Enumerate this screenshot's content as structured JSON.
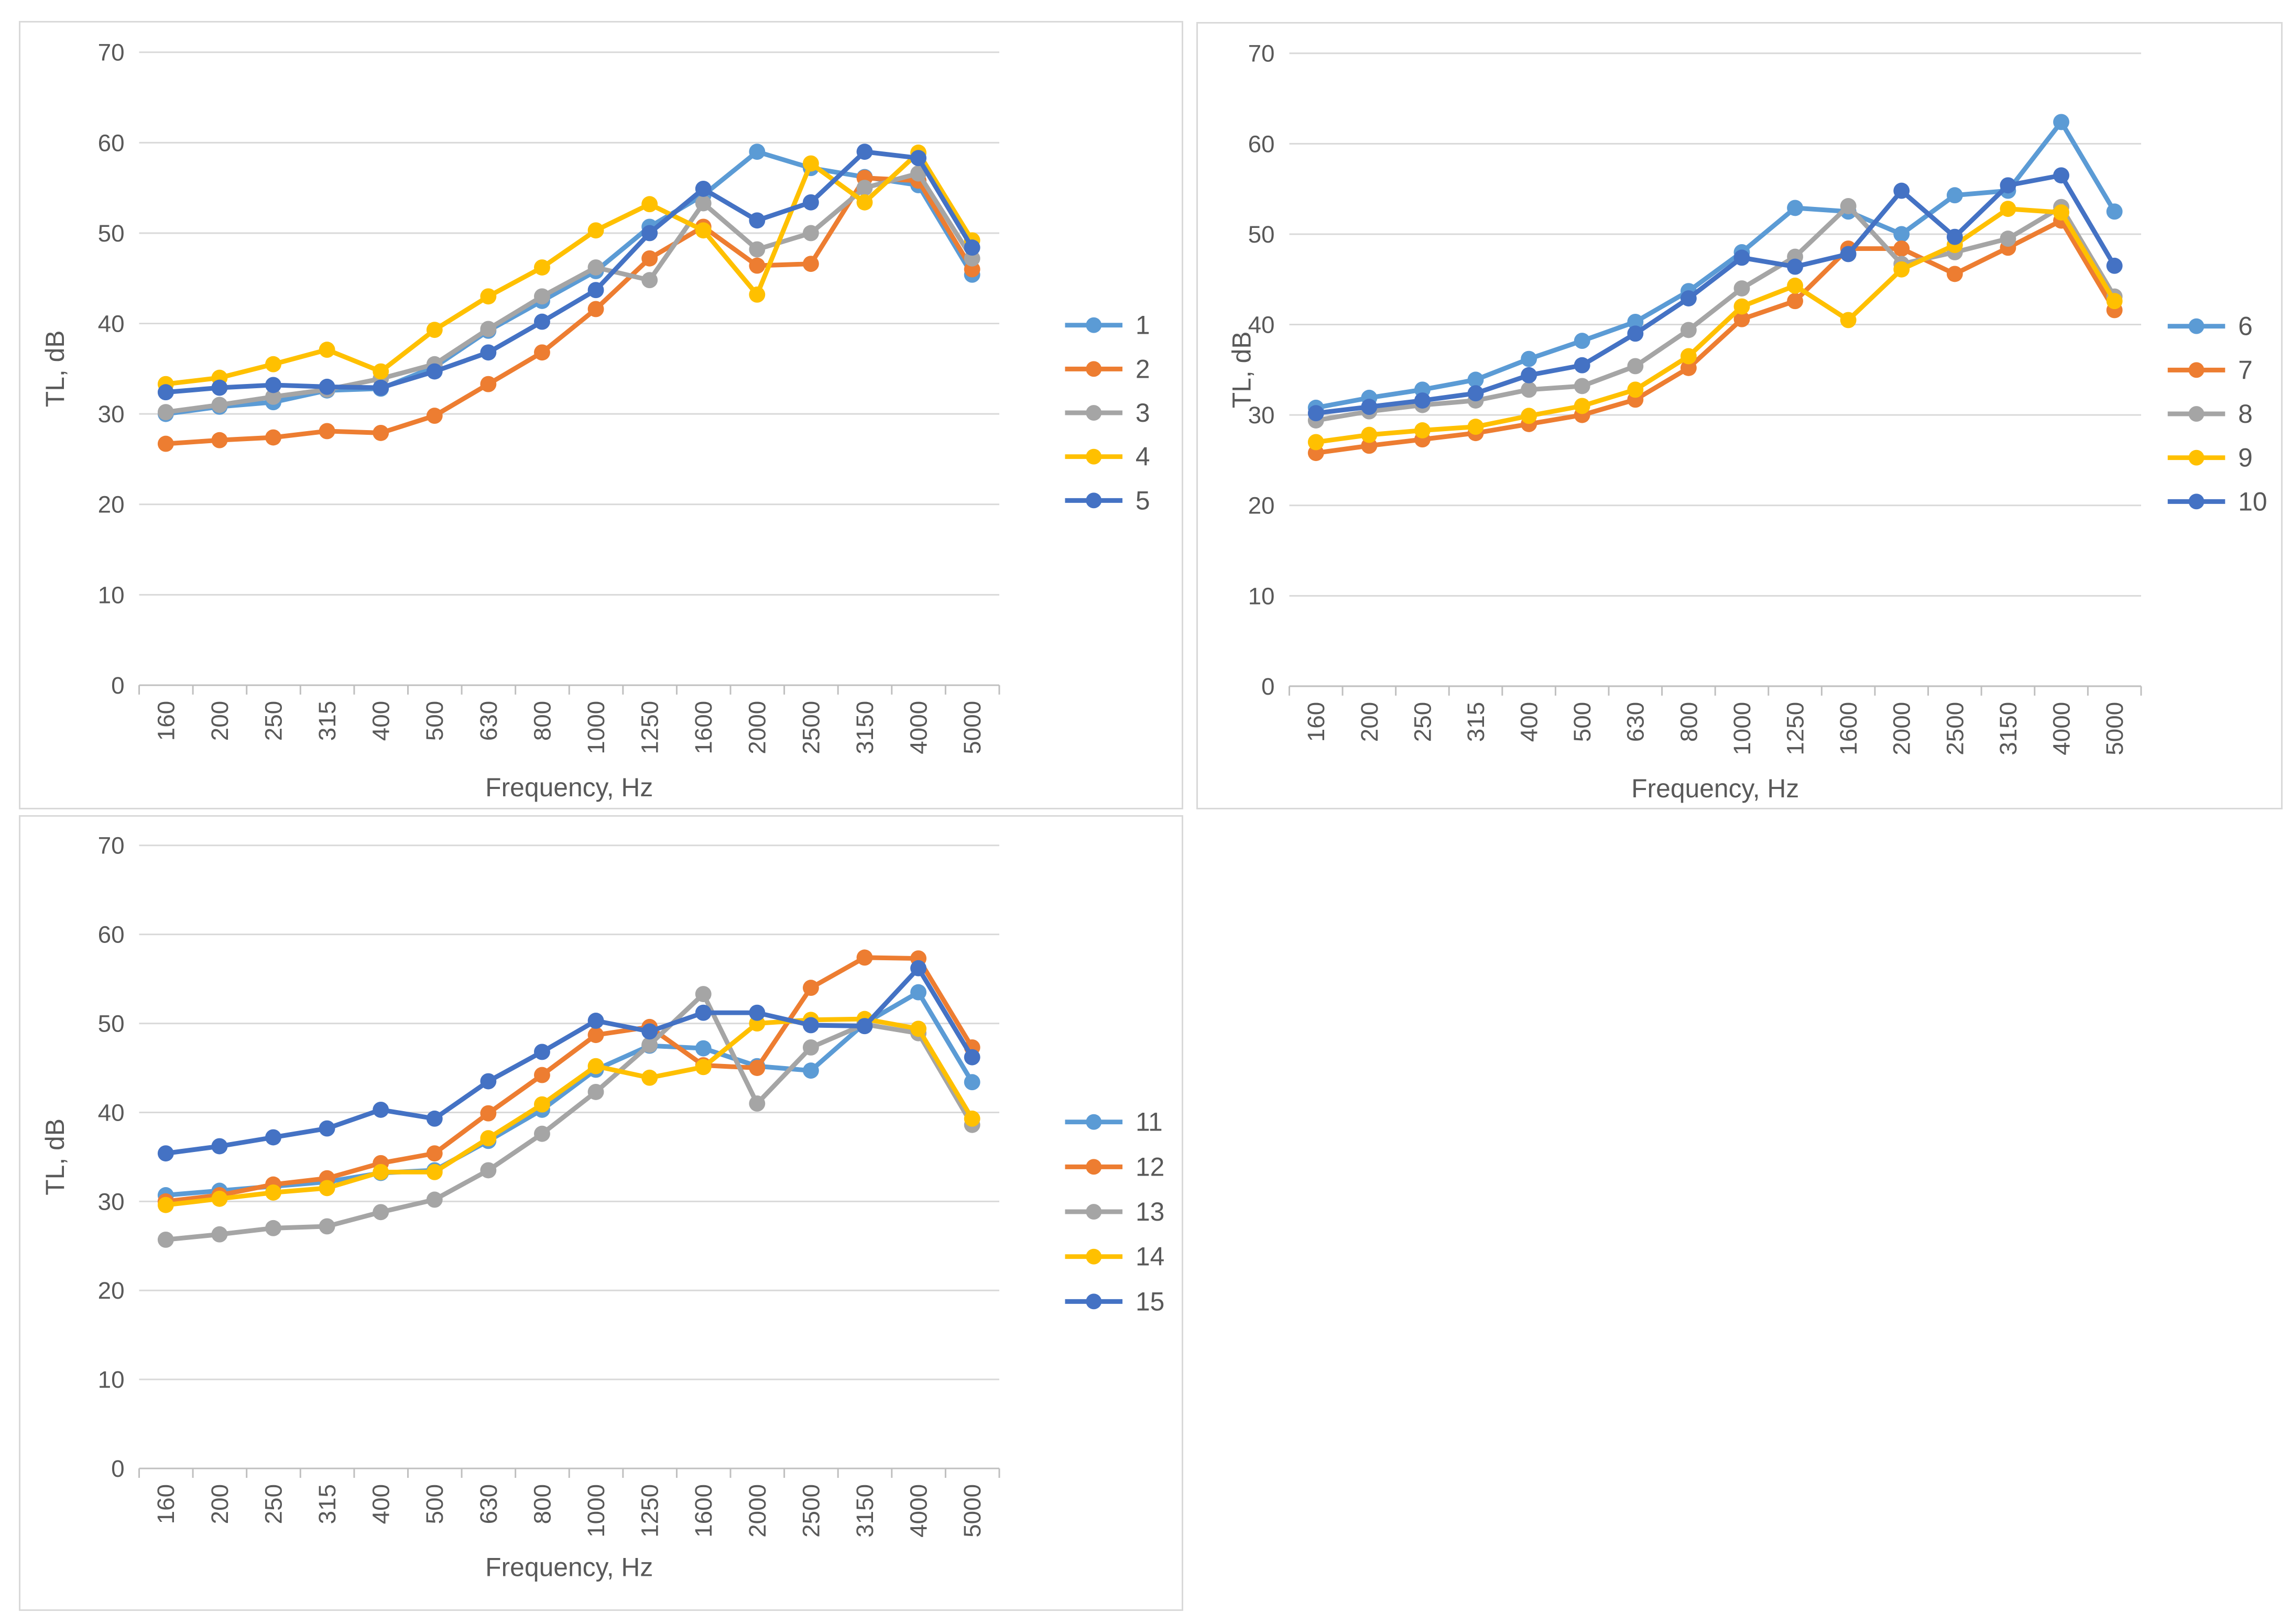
{
  "page": {
    "background": "#ffffff"
  },
  "theme": {
    "grid_color": "#D9D9D9",
    "axis_line_color": "#BFBFBF",
    "text_color": "#595959",
    "panel_border_color": "#D9D9D9",
    "series_palette": [
      "#5B9BD5",
      "#ED7D31",
      "#A5A5A5",
      "#FFC000",
      "#4472C4"
    ]
  },
  "chart_data": [
    {
      "type": "line",
      "title": "",
      "xlabel": "Frequency, Hz",
      "ylabel": "TL, dB",
      "categories": [
        "160",
        "200",
        "250",
        "315",
        "400",
        "500",
        "630",
        "800",
        "1000",
        "1250",
        "1600",
        "2000",
        "2500",
        "3150",
        "4000",
        "5000"
      ],
      "yticks": [
        0,
        10,
        20,
        30,
        40,
        50,
        60,
        70
      ],
      "ylim": [
        0,
        70
      ],
      "grid": true,
      "legend_position": "right",
      "legend": [
        "1",
        "2",
        "3",
        "4",
        "5"
      ],
      "series": [
        {
          "name": "1",
          "color": "#5B9BD5",
          "values": [
            30.0,
            30.8,
            31.3,
            32.6,
            32.8,
            35.2,
            39.2,
            42.5,
            45.8,
            50.7,
            54.2,
            59.0,
            57.2,
            56.2,
            55.3,
            45.4
          ]
        },
        {
          "name": "2",
          "color": "#ED7D31",
          "values": [
            26.7,
            27.1,
            27.4,
            28.1,
            27.9,
            29.8,
            33.3,
            36.8,
            41.6,
            47.2,
            50.7,
            46.4,
            46.6,
            56.1,
            55.8,
            46.0
          ]
        },
        {
          "name": "3",
          "color": "#A5A5A5",
          "values": [
            30.2,
            31.0,
            31.9,
            32.7,
            33.9,
            35.5,
            39.4,
            43.0,
            46.2,
            44.8,
            53.3,
            48.2,
            50.0,
            55.0,
            56.6,
            47.2
          ]
        },
        {
          "name": "4",
          "color": "#FFC000",
          "values": [
            33.3,
            34.0,
            35.5,
            37.1,
            34.7,
            39.3,
            43.0,
            46.2,
            50.3,
            53.2,
            50.3,
            43.2,
            57.7,
            53.4,
            58.9,
            49.2
          ]
        },
        {
          "name": "5",
          "color": "#4472C4",
          "values": [
            32.4,
            32.9,
            33.2,
            33.0,
            32.9,
            34.7,
            36.8,
            40.2,
            43.7,
            50.0,
            54.9,
            51.4,
            53.4,
            59.0,
            58.3,
            48.4
          ]
        }
      ]
    },
    {
      "type": "line",
      "title": "",
      "xlabel": "Frequency, Hz",
      "ylabel": "TL, dB",
      "categories": [
        "160",
        "200",
        "250",
        "315",
        "400",
        "500",
        "630",
        "800",
        "1000",
        "1250",
        "1600",
        "2000",
        "2500",
        "3150",
        "4000",
        "5000"
      ],
      "yticks": [
        0,
        10,
        20,
        30,
        40,
        50,
        60,
        70
      ],
      "ylim": [
        0,
        70
      ],
      "grid": true,
      "legend_position": "right",
      "legend": [
        "6",
        "7",
        "8",
        "9",
        "10"
      ],
      "series": [
        {
          "name": "6",
          "color": "#5B9BD5",
          "values": [
            30.8,
            31.9,
            32.8,
            33.9,
            36.2,
            38.2,
            40.3,
            43.7,
            48.0,
            52.9,
            52.5,
            50.0,
            54.3,
            54.8,
            62.4,
            52.5
          ]
        },
        {
          "name": "7",
          "color": "#ED7D31",
          "values": [
            25.8,
            26.6,
            27.3,
            28.0,
            29.0,
            30.0,
            31.7,
            35.2,
            40.6,
            42.6,
            48.4,
            48.4,
            45.6,
            48.5,
            51.5,
            41.6
          ]
        },
        {
          "name": "8",
          "color": "#A5A5A5",
          "values": [
            29.4,
            30.4,
            31.1,
            31.6,
            32.8,
            33.2,
            35.4,
            39.4,
            44.0,
            47.5,
            53.1,
            46.7,
            48.0,
            49.5,
            53.0,
            43.1
          ]
        },
        {
          "name": "9",
          "color": "#FFC000",
          "values": [
            27.0,
            27.8,
            28.3,
            28.7,
            29.9,
            31.0,
            32.8,
            36.5,
            42.0,
            44.3,
            40.5,
            46.1,
            48.8,
            52.8,
            52.4,
            42.6
          ]
        },
        {
          "name": "10",
          "color": "#4472C4",
          "values": [
            30.2,
            30.9,
            31.6,
            32.4,
            34.4,
            35.5,
            39.0,
            42.9,
            47.4,
            46.4,
            47.8,
            54.8,
            49.7,
            55.4,
            56.5,
            46.5
          ]
        }
      ]
    },
    {
      "type": "line",
      "title": "",
      "xlabel": "Frequency, Hz",
      "ylabel": "TL, dB",
      "categories": [
        "160",
        "200",
        "250",
        "315",
        "400",
        "500",
        "630",
        "800",
        "1000",
        "1250",
        "1600",
        "2000",
        "2500",
        "3150",
        "4000",
        "5000"
      ],
      "yticks": [
        0,
        10,
        20,
        30,
        40,
        50,
        60,
        70
      ],
      "ylim": [
        0,
        70
      ],
      "grid": true,
      "legend_position": "right",
      "legend": [
        "11",
        "12",
        "13",
        "14",
        "15"
      ],
      "series": [
        {
          "name": "11",
          "color": "#5B9BD5",
          "values": [
            30.7,
            31.2,
            31.7,
            32.2,
            33.2,
            33.5,
            36.8,
            40.3,
            44.8,
            47.5,
            47.2,
            45.2,
            44.7,
            50.0,
            53.5,
            43.4
          ]
        },
        {
          "name": "12",
          "color": "#ED7D31",
          "values": [
            30.0,
            30.7,
            31.9,
            32.6,
            34.3,
            35.4,
            39.9,
            44.2,
            48.7,
            49.6,
            45.3,
            45.0,
            54.0,
            57.4,
            57.3,
            47.3
          ]
        },
        {
          "name": "13",
          "color": "#A5A5A5",
          "values": [
            25.7,
            26.3,
            27.0,
            27.2,
            28.8,
            30.2,
            33.5,
            37.6,
            42.3,
            47.6,
            53.3,
            41.0,
            47.3,
            49.9,
            48.9,
            38.6
          ]
        },
        {
          "name": "14",
          "color": "#FFC000",
          "values": [
            29.6,
            30.3,
            31.0,
            31.5,
            33.3,
            33.3,
            37.1,
            40.9,
            45.2,
            43.9,
            45.1,
            50.0,
            50.4,
            50.5,
            49.4,
            39.3
          ]
        },
        {
          "name": "15",
          "color": "#4472C4",
          "values": [
            35.4,
            36.2,
            37.2,
            38.2,
            40.3,
            39.3,
            43.5,
            46.8,
            50.3,
            49.1,
            51.2,
            51.2,
            49.8,
            49.7,
            56.2,
            46.2
          ]
        }
      ]
    }
  ]
}
